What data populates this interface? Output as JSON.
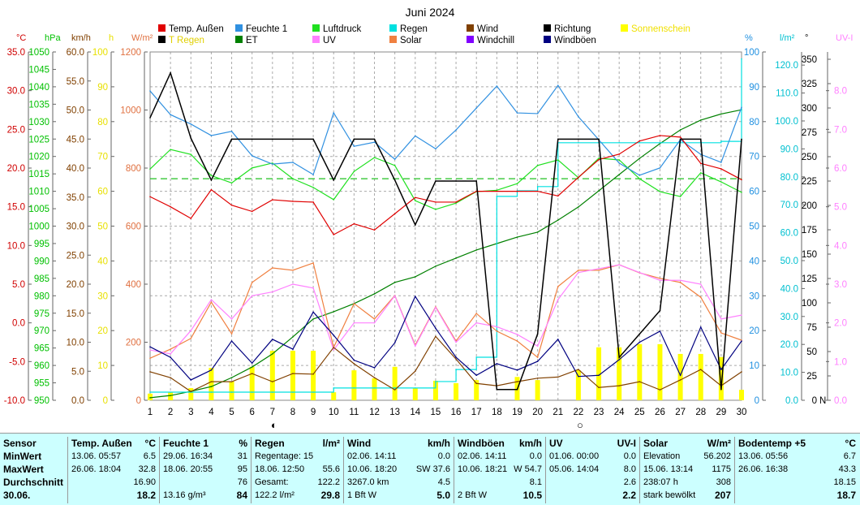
{
  "chart_data": {
    "type": "line",
    "title": "Juni 2024",
    "days": [
      1,
      2,
      3,
      4,
      5,
      6,
      7,
      8,
      9,
      10,
      11,
      12,
      13,
      14,
      15,
      16,
      17,
      18,
      19,
      20,
      21,
      22,
      23,
      24,
      25,
      26,
      27,
      28,
      29,
      30
    ],
    "moon_phases": [
      {
        "day": 7,
        "symbol": "◐"
      },
      {
        "day": 22,
        "symbol": "○"
      }
    ],
    "legend": [
      {
        "label": "Temp. Außen",
        "color": "#e00000",
        "text": "#000"
      },
      {
        "label": "Feuchte 1",
        "color": "#3090e0",
        "text": "#000"
      },
      {
        "label": "Luftdruck",
        "color": "#20e020",
        "text": "#000"
      },
      {
        "label": "Regen",
        "color": "#00e0e0",
        "text": "#000"
      },
      {
        "label": "Wind",
        "color": "#804000",
        "text": "#000"
      },
      {
        "label": "Richtung",
        "color": "#000000",
        "text": "#000"
      },
      {
        "label": "Sonnenschein",
        "color": "#ffff00",
        "text": "#f0e000"
      },
      {
        "label": "T Regen",
        "color": "#000000",
        "text": "#e0d000"
      },
      {
        "label": "ET",
        "color": "#008000",
        "text": "#000"
      },
      {
        "label": "UV",
        "color": "#ff80ff",
        "text": "#000"
      },
      {
        "label": "Solar",
        "color": "#f08040",
        "text": "#000"
      },
      {
        "label": "Windchill",
        "color": "#8000ff",
        "text": "#000"
      },
      {
        "label": "Windböen",
        "color": "#000080",
        "text": "#000"
      }
    ],
    "axes": {
      "temp": {
        "unit": "°C",
        "color": "#d00000",
        "range": [
          -10,
          35
        ],
        "ticks": [
          "35.0",
          "30.0",
          "25.0",
          "20.0",
          "15.0",
          "10.0",
          "5.0",
          "0.0",
          "-5.0",
          "-10.0"
        ]
      },
      "hpa": {
        "unit": "hPa",
        "color": "#00c000",
        "range": [
          950,
          1050
        ],
        "ticks": [
          "1050",
          "1045",
          "1040",
          "1035",
          "1030",
          "1025",
          "1020",
          "1015",
          "1010",
          "1005",
          "1000",
          "995",
          "990",
          "985",
          "980",
          "975",
          "970",
          "965",
          "960",
          "955",
          "950"
        ]
      },
      "kmh": {
        "unit": "km/h",
        "color": "#804000",
        "range": [
          0,
          60
        ],
        "ticks": [
          "60.0",
          "55.0",
          "50.0",
          "45.0",
          "40.0",
          "35.0",
          "30.0",
          "25.0",
          "20.0",
          "15.0",
          "10.0",
          "5.0",
          "0.0"
        ]
      },
      "h": {
        "unit": "h",
        "color": "#e8e000",
        "range": [
          0,
          100
        ],
        "ticks": [
          "100",
          "90",
          "80",
          "70",
          "60",
          "50",
          "40",
          "30",
          "20",
          "10",
          "0"
        ]
      },
      "wm2": {
        "unit": "W/m²",
        "color": "#e07040",
        "range": [
          0,
          1200
        ],
        "ticks": [
          "1200",
          "1000",
          "800",
          "600",
          "400",
          "200",
          "0"
        ]
      },
      "pct": {
        "unit": "%",
        "color": "#2090e0",
        "range": [
          0,
          100
        ],
        "ticks": [
          "100",
          "90",
          "80",
          "70",
          "60",
          "50",
          "40",
          "30",
          "20",
          "10",
          "0"
        ]
      },
      "lm2": {
        "unit": "l/m²",
        "color": "#00c0d0",
        "range": [
          0,
          124.7
        ],
        "ticks": [
          "120.0",
          "110.0",
          "100.0",
          "90.0",
          "80.0",
          "70.0",
          "60.0",
          "50.0",
          "40.0",
          "30.0",
          "20.0",
          "10.0",
          "0.0"
        ]
      },
      "deg": {
        "unit": "°",
        "color": "#000000",
        "range": [
          0,
          357.5
        ],
        "ticks": [
          "350",
          "325",
          "300",
          "275",
          "250",
          "225",
          "200",
          "175",
          "150",
          "125",
          "100",
          "75",
          "50",
          "25",
          "0"
        ],
        "zero_label": "N"
      },
      "uv": {
        "unit": "UV-I",
        "color": "#ff80ff",
        "range": [
          0,
          9
        ],
        "ticks": [
          "8.0",
          "7.0",
          "6.0",
          "5.0",
          "4.0",
          "3.0",
          "2.0",
          "1.0",
          "0.0"
        ]
      }
    },
    "series": [
      {
        "name": "Sonnenschein",
        "axis": "h",
        "kind": "bar",
        "color": "#ffff00",
        "values": [
          1.9,
          2.3,
          3.5,
          9.3,
          5.4,
          9.6,
          14.2,
          14.2,
          14.2,
          2.3,
          8.6,
          6.3,
          9.6,
          3.5,
          5.6,
          4.9,
          5.8,
          0,
          6.7,
          5.8,
          0,
          8.6,
          15.2,
          15.2,
          16.1,
          16.1,
          13.3,
          13.3,
          12.4,
          3
        ]
      },
      {
        "name": "ET",
        "axis": "lm2",
        "color": "#008000",
        "values": [
          0.9,
          1.7,
          3.2,
          4.9,
          8.1,
          11.9,
          16.6,
          22.7,
          29.1,
          31.7,
          34.6,
          38.1,
          42.2,
          44.2,
          48,
          50.9,
          53.8,
          56.1,
          58.4,
          60.2,
          64.5,
          69.2,
          75,
          80.8,
          86.6,
          91.9,
          96.8,
          100.3,
          102.5,
          104
        ]
      },
      {
        "name": "Regen",
        "axis": "lm2",
        "color": "#00e0e0",
        "step": true,
        "values": [
          2.9,
          2.9,
          2.9,
          2.9,
          2.9,
          2.9,
          2.9,
          2.9,
          2.9,
          4.4,
          4.4,
          4.4,
          4.4,
          4.4,
          6.7,
          11,
          15.4,
          73,
          75,
          76.5,
          92.2,
          92.2,
          92.2,
          92.2,
          92.2,
          92.2,
          92.2,
          92.2,
          92.7,
          122.2
        ]
      },
      {
        "name": "Solar",
        "axis": "wm2",
        "color": "#f08040",
        "values": [
          145,
          176,
          213,
          338,
          229,
          406,
          456,
          448,
          473,
          182,
          333,
          280,
          361,
          190,
          322,
          204,
          299,
          238,
          204,
          148,
          392,
          448,
          448,
          467,
          439,
          420,
          406,
          355,
          232,
          207
        ]
      },
      {
        "name": "UV",
        "axis": "uv",
        "color": "#ff80ff",
        "values": [
          1.3,
          1.2,
          1.8,
          2.6,
          2.1,
          2.7,
          2.8,
          3.0,
          2.9,
          1.3,
          2.0,
          2.0,
          2.7,
          1.4,
          2.4,
          1.5,
          2.0,
          1.9,
          1.7,
          1.4,
          2.6,
          3.3,
          3.4,
          3.5,
          3.3,
          3.1,
          3.1,
          3.0,
          2.1,
          2.2
        ]
      },
      {
        "name": "Wind",
        "axis": "kmh",
        "color": "#804000",
        "values": [
          4.9,
          3.9,
          1.5,
          3.2,
          3.2,
          4.6,
          3.2,
          4.6,
          4.5,
          9.1,
          6.3,
          3.9,
          1.8,
          5.0,
          11.0,
          7.1,
          2.9,
          2.5,
          3.2,
          3.8,
          4.0,
          5.3,
          2.2,
          2.5,
          3.2,
          1.8,
          3.5,
          5.3,
          2.5,
          4.9
        ]
      },
      {
        "name": "Windböen",
        "axis": "kmh",
        "color": "#000080",
        "values": [
          9.2,
          7.4,
          3.5,
          5.2,
          10.2,
          6.4,
          10.5,
          8.8,
          15.2,
          11.2,
          6.9,
          5.6,
          9.9,
          17.9,
          12.4,
          7.4,
          4.3,
          6.3,
          5.2,
          6.7,
          10.5,
          4.1,
          4.3,
          7.0,
          10.0,
          11.9,
          4.3,
          12.6,
          5.3,
          10.2
        ]
      },
      {
        "name": "Luftdruck",
        "axis": "hpa",
        "color": "#20e020",
        "values": [
          1016.4,
          1022,
          1020.6,
          1014.5,
          1012.4,
          1016.7,
          1018.1,
          1013.6,
          1011.1,
          1007.6,
          1015.7,
          1019.7,
          1017.4,
          1007.3,
          1004.8,
          1006.6,
          1009.9,
          1010.3,
          1012.2,
          1017.4,
          1019,
          1013.9,
          1019.5,
          1019,
          1013.6,
          1009.9,
          1008.5,
          1015.3,
          1012.7,
          1009.7
        ]
      },
      {
        "name": "Feuchte 1",
        "axis": "pct",
        "color": "#3090e0",
        "values": [
          88.8,
          82,
          79.3,
          76,
          77.2,
          70.2,
          67.8,
          68.3,
          64.8,
          82.5,
          72.9,
          74.1,
          69.2,
          75.9,
          72.2,
          77.6,
          83.9,
          90.2,
          82.5,
          82.3,
          90.4,
          81.4,
          74.8,
          68.1,
          64.6,
          66.7,
          74.8,
          70.6,
          68.3,
          84.1
        ]
      },
      {
        "name": "Temp. Außen",
        "axis": "temp",
        "color": "#e00000",
        "values": [
          16.3,
          15.0,
          13.5,
          17.2,
          15.2,
          14.4,
          15.9,
          15.7,
          15.6,
          11.4,
          12.8,
          12.0,
          14.1,
          16.2,
          15.6,
          15.6,
          17.0,
          17.0,
          17.0,
          17.0,
          16.4,
          18.8,
          21.1,
          21.8,
          23.5,
          24.2,
          24.0,
          20.6,
          19.9,
          18.5
        ]
      },
      {
        "name": "Richtung",
        "axis": "deg",
        "color": "#000000",
        "values": [
          290,
          336,
          269,
          226,
          268,
          268,
          268,
          268,
          268,
          226,
          268,
          268,
          226,
          180,
          225,
          225,
          225,
          11,
          11,
          68,
          268,
          268,
          268,
          44,
          68,
          92,
          268,
          268,
          11,
          268
        ]
      }
    ],
    "reference_line": {
      "name": "Luftdruck Mittel",
      "axis": "hpa",
      "value": 1013.6,
      "color": "#20c020"
    }
  },
  "table": {
    "columns": [
      {
        "header": [
          "Sensor",
          ""
        ],
        "rows": [
          [
            "MinWert",
            ""
          ],
          [
            "MaxWert",
            ""
          ],
          [
            "Durchschnitt",
            ""
          ],
          [
            "30.06.",
            ""
          ]
        ],
        "label": true
      },
      {
        "header": [
          "Temp. Außen",
          "°C"
        ],
        "rows": [
          [
            "13.06.  05:57",
            "6.5"
          ],
          [
            "26.06.  18:04",
            "32.8"
          ],
          [
            "",
            "16.90"
          ],
          [
            "",
            "18.2"
          ]
        ]
      },
      {
        "header": [
          "Feuchte 1",
          "%"
        ],
        "rows": [
          [
            "29.06.  16:34",
            "31"
          ],
          [
            "18.06.  20:55",
            "95"
          ],
          [
            "",
            "76"
          ],
          [
            "13.16 g/m³",
            "84"
          ]
        ]
      },
      {
        "header": [
          "Regen",
          "l/m²"
        ],
        "rows": [
          [
            "Regentage: 15",
            ""
          ],
          [
            "18.06.  12:50",
            "55.6"
          ],
          [
            "Gesamt:",
            "122.2"
          ],
          [
            "122.2 l/m²",
            "29.8"
          ]
        ]
      },
      {
        "header": [
          "Wind",
          "km/h"
        ],
        "rows": [
          [
            "02.06.  14:11",
            "0.0"
          ],
          [
            "10.06.  18:20",
            "SW 37.6"
          ],
          [
            "3267.0 km",
            "4.5"
          ],
          [
            "1 Bft W",
            "5.0"
          ]
        ]
      },
      {
        "header": [
          "Windböen",
          "km/h"
        ],
        "rows": [
          [
            "02.06.  14:11",
            "0.0"
          ],
          [
            "10.06.  18:21",
            "W 54.7"
          ],
          [
            "",
            "8.1"
          ],
          [
            "2 Bft W",
            "10.5"
          ]
        ]
      },
      {
        "header": [
          "UV",
          "UV-I"
        ],
        "rows": [
          [
            "01.06.  00:00",
            "0.0"
          ],
          [
            "05.06.  14:04",
            "8.0"
          ],
          [
            "",
            "2.6"
          ],
          [
            "",
            "2.2"
          ]
        ]
      },
      {
        "header": [
          "Solar",
          "W/m²"
        ],
        "rows": [
          [
            "Elevation",
            "56.202"
          ],
          [
            "15.06.  13:14",
            "1175"
          ],
          [
            "238:07 h",
            "308"
          ],
          [
            "stark bewölkt",
            "207"
          ]
        ]
      },
      {
        "header": [
          "Bodentemp +5",
          "°C"
        ],
        "rows": [
          [
            "13.06.  05:56",
            "6.7"
          ],
          [
            "26.06.  16:38",
            "43.3"
          ],
          [
            "",
            "18.15"
          ],
          [
            "",
            "18.7"
          ]
        ]
      }
    ]
  }
}
